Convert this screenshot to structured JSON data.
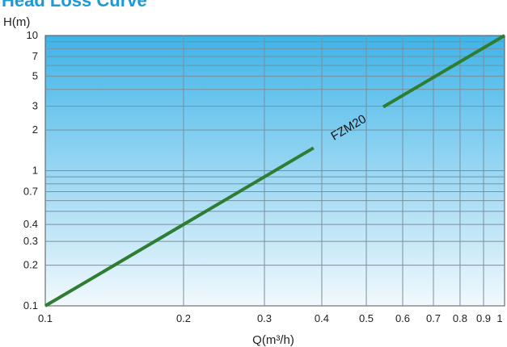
{
  "chart_data": {
    "type": "line",
    "title": "Head Loss Curve",
    "ylabel": "H(m)",
    "xlabel": "Q(m³/h)",
    "x_scale": "log",
    "y_scale": "log",
    "xlim": [
      0.1,
      1
    ],
    "ylim": [
      0.1,
      10
    ],
    "x_ticks": [
      0.1,
      0.2,
      0.3,
      0.4,
      0.5,
      0.6,
      0.7,
      0.8,
      0.9,
      1
    ],
    "x_tick_labels": [
      "0.1",
      "0.2",
      "0.3",
      "0.4",
      "0.5",
      "0.6",
      "0.7",
      "0.8",
      "0.9",
      "1"
    ],
    "y_ticks": [
      0.1,
      0.2,
      0.3,
      0.4,
      0.7,
      1,
      2,
      3,
      5,
      7,
      10
    ],
    "y_tick_labels": [
      "0.1",
      "0.2",
      "0.3",
      "0.4",
      "0.7",
      "1",
      "2",
      "3",
      "5",
      "7",
      "10"
    ],
    "y_grid_lines": [
      0.2,
      0.3,
      0.4,
      0.5,
      0.6,
      0.7,
      0.8,
      0.9,
      1,
      2,
      3,
      4,
      5,
      6,
      7,
      8,
      9
    ],
    "grid": true,
    "series": [
      {
        "name": "FZM20",
        "x": [
          0.1,
          1
        ],
        "y": [
          0.1,
          10
        ]
      }
    ],
    "colors": {
      "line": "#2e7d32",
      "grid": "#7a8f9c",
      "bg_top": "#3fb4e8",
      "bg_bottom": "#f2f9fd"
    }
  }
}
